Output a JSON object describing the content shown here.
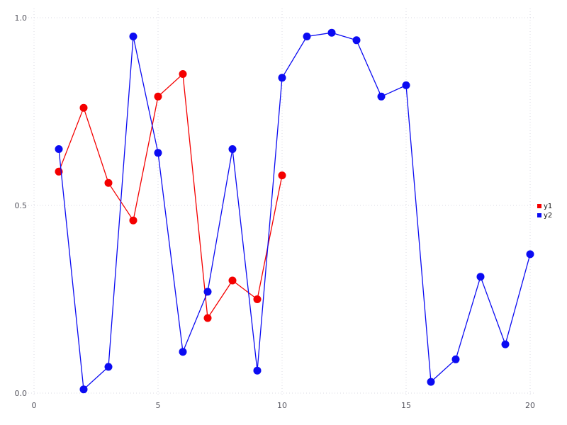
{
  "chart_data": {
    "type": "line",
    "title": "",
    "xlabel": "",
    "ylabel": "",
    "xlim": [
      0,
      20.2
    ],
    "ylim": [
      0,
      1.0
    ],
    "grid": true,
    "grid_style": "dotted",
    "grid_color": "#d9d9e3",
    "tick_label_color": "#55555f",
    "background_color": "#ffffff",
    "legend_position": "right-outside",
    "marker": "circle",
    "x_ticks": [
      0,
      5,
      10,
      15,
      20
    ],
    "x_tick_labels": [
      "0",
      "5",
      "10",
      "15",
      "20"
    ],
    "y_ticks": [
      0,
      0.5,
      1
    ],
    "y_tick_labels": [
      "0.0",
      "0.5",
      "1.0"
    ],
    "series": [
      {
        "name": "y1",
        "color": "#f40000",
        "x": [
          1,
          2,
          3,
          4,
          5,
          6,
          7,
          8,
          9,
          10
        ],
        "y": [
          0.59,
          0.76,
          0.56,
          0.46,
          0.79,
          0.85,
          0.2,
          0.3,
          0.25,
          0.58
        ]
      },
      {
        "name": "y2",
        "color": "#0b0bf2",
        "x": [
          1,
          2,
          3,
          4,
          5,
          6,
          7,
          8,
          9,
          10,
          11,
          12,
          13,
          14,
          15,
          16,
          17,
          18,
          19,
          20
        ],
        "y": [
          0.65,
          0.01,
          0.07,
          0.95,
          0.64,
          0.11,
          0.27,
          0.65,
          0.06,
          0.84,
          0.95,
          0.96,
          0.94,
          0.79,
          0.82,
          0.03,
          0.09,
          0.31,
          0.13,
          0.37
        ]
      }
    ],
    "legend": [
      {
        "label": "y1",
        "color": "#f40000"
      },
      {
        "label": "y2",
        "color": "#0b0bf2"
      }
    ]
  }
}
